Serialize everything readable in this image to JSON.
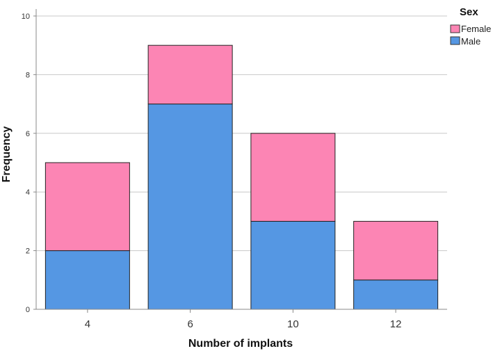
{
  "chart_data": {
    "type": "bar",
    "stacked": true,
    "categories": [
      "4",
      "6",
      "10",
      "12"
    ],
    "series": [
      {
        "name": "Male",
        "values": [
          2,
          7,
          3,
          1
        ],
        "color": "#5597e3"
      },
      {
        "name": "Female",
        "values": [
          3,
          2,
          3,
          2
        ],
        "color": "#fc85b4"
      }
    ],
    "xlabel": "Number of implants",
    "ylabel": "Frequency",
    "ylim": [
      0,
      10
    ],
    "yticks": [
      "0",
      "2",
      "4",
      "6",
      "8",
      "10"
    ],
    "grid": true,
    "legend": {
      "title": "Sex",
      "position": "top-right",
      "items": [
        "Female",
        "Male"
      ]
    }
  }
}
